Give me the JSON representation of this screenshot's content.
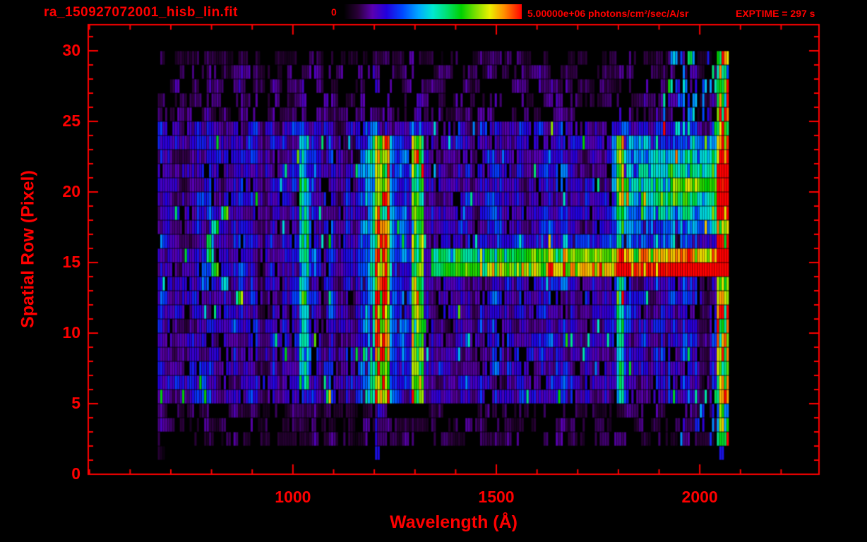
{
  "header": {
    "filename": "ra_150927072001_hisb_lin.fit",
    "colorbar_min": "0",
    "colorbar_max": "5.00000e+06 photons/cm²/sec/A/sr",
    "exptime": "EXPTIME = 297 s"
  },
  "chart_data": {
    "type": "heatmap",
    "title": "ra_150927072001_hisb_lin.fit",
    "xlabel": "Wavelength (Å)",
    "ylabel": "Spatial Row (Pixel)",
    "x_ticks": [
      1000,
      1500,
      2000
    ],
    "x_minor_step": 100,
    "y_ticks": [
      0,
      5,
      10,
      15,
      20,
      25,
      30
    ],
    "y_minor_step": 1,
    "xlim": [
      497,
      2293
    ],
    "ylim": [
      0,
      31.85
    ],
    "axis_color": "#ff0000",
    "background": "#000000",
    "exposure_time_s": 297,
    "colorbar": {
      "min": 0,
      "max": 5000000,
      "units": "photons/cm²/sec/A/sr",
      "colormap": "rainbow",
      "stops": [
        [
          0.0,
          "#000000"
        ],
        [
          0.08,
          "#2a0038"
        ],
        [
          0.16,
          "#5a00b0"
        ],
        [
          0.24,
          "#2200dd"
        ],
        [
          0.33,
          "#0048ff"
        ],
        [
          0.42,
          "#00a8ff"
        ],
        [
          0.5,
          "#00e8d0"
        ],
        [
          0.58,
          "#00e070"
        ],
        [
          0.66,
          "#00d000"
        ],
        [
          0.74,
          "#7ae000"
        ],
        [
          0.82,
          "#eaf000"
        ],
        [
          0.9,
          "#ff9000"
        ],
        [
          1.0,
          "#ff0000"
        ]
      ]
    },
    "data_extent": {
      "wavelength": [
        668,
        2072
      ],
      "rows": [
        1,
        29
      ],
      "bin_width_A": 6
    },
    "noise_seed": 150927072,
    "features": [
      {
        "name": "lyman-alpha-emission-line",
        "wavelength": 1216,
        "width_A": 40,
        "rows": [
          5,
          23
        ],
        "intensity": 0.62
      },
      {
        "name": "oi-1304-emission-line",
        "wavelength": 1304,
        "width_A": 26,
        "rows": [
          5,
          23
        ],
        "intensity": 0.45
      },
      {
        "name": "lyman-beta-emission-line",
        "wavelength": 1026,
        "width_A": 22,
        "rows": [
          6,
          23
        ],
        "intensity": 0.3
      },
      {
        "name": "line-1800",
        "wavelength": 1800,
        "width_A": 20,
        "rows": [
          5,
          23
        ],
        "intensity": 0.3
      },
      {
        "name": "bright-horizontal-stripe-row15",
        "rows": [
          14,
          15
        ],
        "wavelength_range": [
          1340,
          2070
        ],
        "intensity_start": 0.42,
        "intensity_end": 0.95
      },
      {
        "name": "upper-right-green-region",
        "rows": [
          17,
          23
        ],
        "wavelength_range": [
          1780,
          2070
        ],
        "intensity": 0.45
      },
      {
        "name": "right-edge-bright-column",
        "wavelength_range": [
          2040,
          2072
        ],
        "rows": [
          2,
          29
        ],
        "intensity": 0.55
      },
      {
        "name": "left-arc-feature",
        "rows": [
          12,
          18
        ],
        "wavelength_center": 795,
        "curvature": 6,
        "intensity": 0.35
      }
    ]
  }
}
